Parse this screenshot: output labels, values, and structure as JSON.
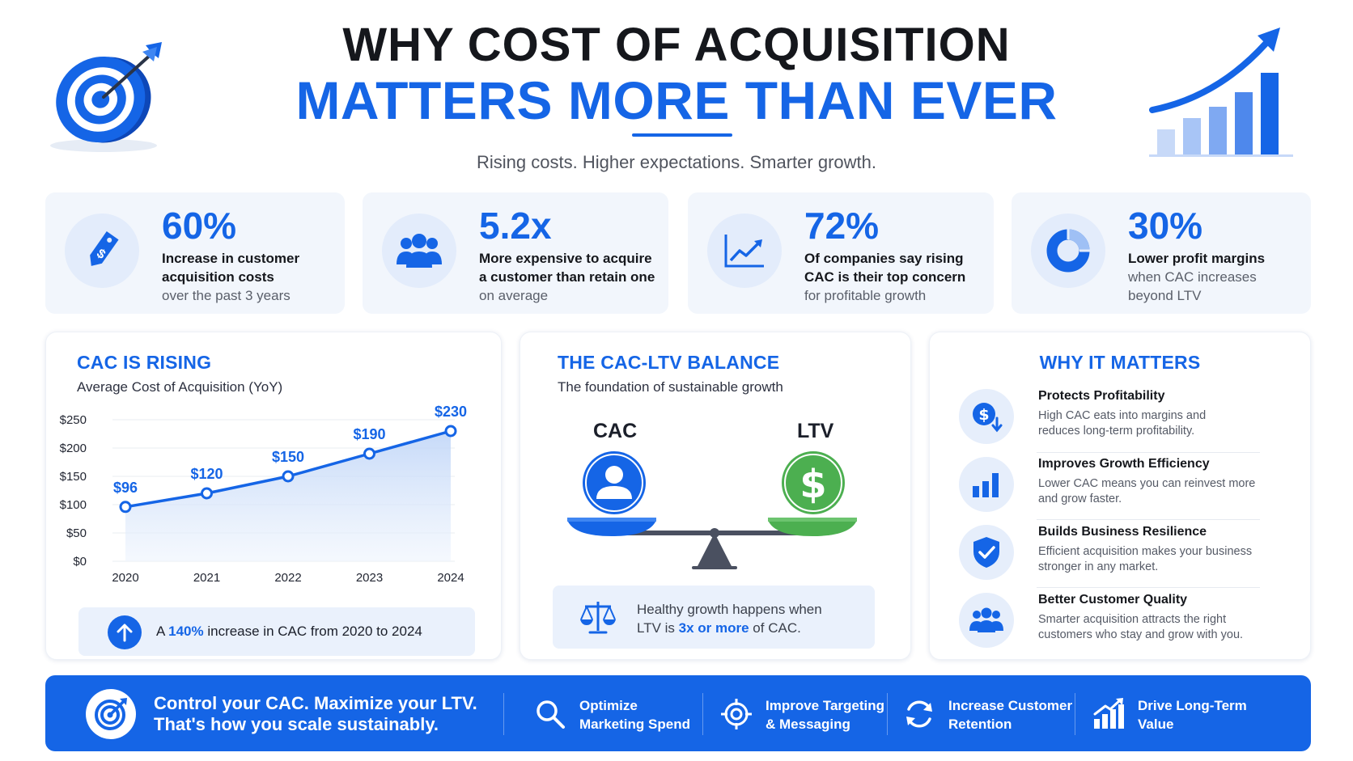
{
  "header": {
    "title_line1": "WHY COST OF ACQUISITION",
    "title_line2": "MATTERS MORE THAN EVER",
    "subtitle": "Rising costs. Higher expectations. Smarter growth."
  },
  "stats": [
    {
      "value": "60%",
      "line1": "Increase in customer",
      "line2": "acquisition costs",
      "line3": "over the past 3 years",
      "icon": "price-tag-icon"
    },
    {
      "value": "5.2x",
      "line1": "More expensive to acquire",
      "line2": "a customer than retain one",
      "line3": "on average",
      "icon": "users-icon"
    },
    {
      "value": "72%",
      "line1": "Of companies say rising",
      "line2": "CAC is their top concern",
      "line3": "for profitable growth",
      "icon": "trend-chart-icon"
    },
    {
      "value": "30%",
      "line1": "Lower profit margins",
      "line2": "when CAC increases",
      "line3": "beyond LTV",
      "icon": "donut-chart-icon"
    }
  ],
  "cac_panel": {
    "title": "CAC IS RISING",
    "subtitle": "Average Cost of Acquisition (YoY)",
    "callout_pre": "A ",
    "callout_highlight": "140%",
    "callout_post": " increase in CAC from 2020 to 2024"
  },
  "chart_data": {
    "type": "area",
    "title": "CAC IS RISING",
    "subtitle": "Average Cost of Acquisition (YoY)",
    "categories": [
      "2020",
      "2021",
      "2022",
      "2023",
      "2024"
    ],
    "values": [
      96,
      120,
      150,
      190,
      230
    ],
    "data_labels": [
      "$96",
      "$120",
      "$150",
      "$190",
      "$230"
    ],
    "y_ticks": [
      0,
      50,
      100,
      150,
      200,
      250
    ],
    "y_tick_labels": [
      "$0",
      "$50",
      "$100",
      "$150",
      "$200",
      "$250"
    ],
    "ylim": [
      0,
      250
    ],
    "grid": true,
    "color": "#1565e6"
  },
  "balance_panel": {
    "title": "THE CAC-LTV BALANCE",
    "subtitle": "The foundation of sustainable growth",
    "left_label": "CAC",
    "right_label": "LTV",
    "right_symbol": "$",
    "note_line1": "Healthy growth happens when",
    "note_pre": "LTV is ",
    "note_highlight": "3x or more",
    "note_post": " of CAC."
  },
  "why_panel": {
    "title": "WHY IT MATTERS",
    "items": [
      {
        "title": "Protects Profitability",
        "desc1": "High CAC eats into margins and",
        "desc2": "reduces long-term profitability.",
        "icon": "dollar-down-icon"
      },
      {
        "title": "Improves Growth Efficiency",
        "desc1": "Lower CAC means you can reinvest more",
        "desc2": "and grow faster.",
        "icon": "bar-chart-icon"
      },
      {
        "title": "Builds Business Resilience",
        "desc1": "Efficient acquisition makes your business",
        "desc2": "stronger in any market.",
        "icon": "shield-check-icon"
      },
      {
        "title": "Better Customer Quality",
        "desc1": "Smarter acquisition attracts the right",
        "desc2": "customers who stay and grow with you.",
        "icon": "group-icon"
      }
    ]
  },
  "banner": {
    "line1": "Control your CAC. Maximize your LTV.",
    "line2": "That's how you scale sustainably.",
    "items": [
      {
        "line1": "Optimize",
        "line2": "Marketing Spend",
        "icon": "search-icon"
      },
      {
        "line1": "Improve Targeting",
        "line2": "& Messaging",
        "icon": "crosshair-icon"
      },
      {
        "line1": "Increase Customer",
        "line2": "Retention",
        "icon": "refresh-icon"
      },
      {
        "line1": "Drive Long-Term",
        "line2": "Value",
        "icon": "growth-chart-icon"
      }
    ]
  },
  "colors": {
    "accent": "#1565e6",
    "green": "#4caf50",
    "light": "#f2f6fc"
  }
}
